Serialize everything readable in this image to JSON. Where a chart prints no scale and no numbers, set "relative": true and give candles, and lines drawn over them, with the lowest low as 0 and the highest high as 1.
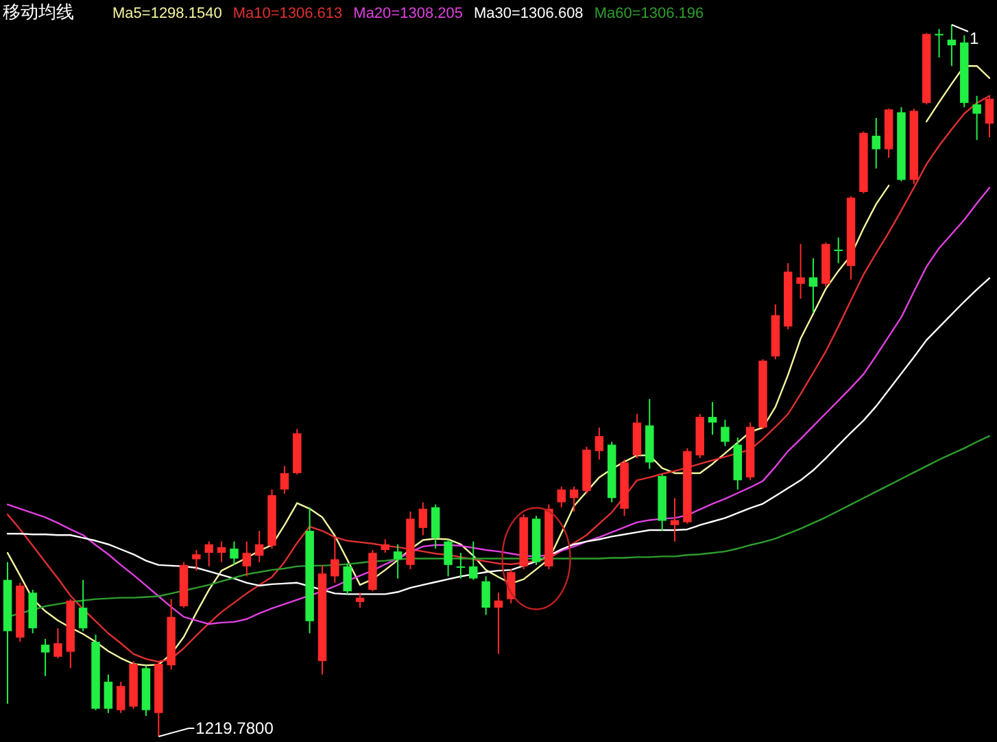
{
  "chart_data": {
    "type": "candlestick",
    "title": "移动均线",
    "relative": true,
    "legend": "top left",
    "categories": [
      null,
      null,
      null,
      null,
      null,
      null,
      null,
      null,
      null,
      null,
      null,
      null,
      null,
      null,
      null,
      null,
      null,
      null,
      null,
      null,
      null,
      null,
      null,
      null,
      null,
      null,
      null,
      null,
      null,
      null,
      null,
      null,
      null,
      null,
      null,
      null,
      null,
      null,
      null,
      null,
      null,
      null,
      null,
      null,
      null,
      null,
      null,
      null,
      null,
      null,
      null,
      null,
      null,
      null,
      null,
      null,
      null,
      null,
      null,
      null,
      null,
      null,
      null,
      null,
      null,
      null,
      null,
      null,
      null,
      null,
      null,
      null,
      null,
      null,
      null,
      null,
      null,
      null,
      null
    ],
    "ohlc": [
      [
        0.22,
        0.245,
        0.046,
        0.148
      ],
      [
        0.139,
        0.216,
        0.133,
        0.212
      ],
      [
        0.202,
        0.206,
        0.145,
        0.152
      ],
      [
        0.129,
        0.137,
        0.085,
        0.118
      ],
      [
        0.112,
        0.152,
        0.11,
        0.131
      ],
      [
        0.119,
        0.193,
        0.096,
        0.191
      ],
      [
        0.181,
        0.22,
        0.148,
        0.152
      ],
      [
        0.133,
        0.143,
        0.037,
        0.039
      ],
      [
        0.077,
        0.087,
        0.033,
        0.039
      ],
      [
        0.037,
        0.077,
        0.033,
        0.071
      ],
      [
        0.042,
        0.106,
        0.039,
        0.102
      ],
      [
        0.096,
        0.1,
        0.029,
        0.037
      ],
      [
        0.033,
        0.106,
        0.0,
        0.102
      ],
      [
        0.1,
        0.193,
        0.094,
        0.168
      ],
      [
        0.183,
        0.245,
        0.181,
        0.241
      ],
      [
        0.249,
        0.262,
        0.233,
        0.256
      ],
      [
        0.258,
        0.274,
        0.239,
        0.27
      ],
      [
        0.258,
        0.274,
        0.245,
        0.266
      ],
      [
        0.264,
        0.274,
        0.241,
        0.25
      ],
      [
        0.239,
        0.274,
        0.225,
        0.258
      ],
      [
        0.254,
        0.289,
        0.245,
        0.27
      ],
      [
        0.268,
        0.347,
        0.264,
        0.339
      ],
      [
        0.347,
        0.38,
        0.341,
        0.37
      ],
      [
        0.37,
        0.432,
        0.368,
        0.426
      ],
      [
        0.289,
        0.322,
        0.145,
        0.162
      ],
      [
        0.106,
        0.241,
        0.087,
        0.229
      ],
      [
        0.225,
        0.279,
        0.216,
        0.249
      ],
      [
        0.239,
        0.243,
        0.2,
        0.204
      ],
      [
        0.189,
        0.202,
        0.181,
        0.195
      ],
      [
        0.206,
        0.262,
        0.204,
        0.258
      ],
      [
        0.262,
        0.277,
        0.258,
        0.27
      ],
      [
        0.26,
        0.27,
        0.222,
        0.249
      ],
      [
        0.241,
        0.316,
        0.235,
        0.306
      ],
      [
        0.293,
        0.329,
        0.283,
        0.32
      ],
      [
        0.322,
        0.326,
        0.264,
        0.279
      ],
      [
        0.274,
        0.277,
        0.225,
        0.241
      ],
      [
        0.239,
        0.258,
        0.222,
        0.237
      ],
      [
        0.239,
        0.274,
        0.22,
        0.222
      ],
      [
        0.218,
        0.225,
        0.171,
        0.181
      ],
      [
        0.181,
        0.202,
        0.116,
        0.191
      ],
      [
        0.193,
        0.235,
        0.187,
        0.231
      ],
      [
        0.239,
        0.312,
        0.235,
        0.308
      ],
      [
        0.306,
        0.31,
        0.241,
        0.245
      ],
      [
        0.239,
        0.326,
        0.235,
        0.32
      ],
      [
        0.329,
        0.351,
        0.322,
        0.347
      ],
      [
        0.335,
        0.351,
        0.316,
        0.347
      ],
      [
        0.345,
        0.407,
        0.341,
        0.403
      ],
      [
        0.401,
        0.434,
        0.389,
        0.422
      ],
      [
        0.41,
        0.414,
        0.329,
        0.335
      ],
      [
        0.32,
        0.389,
        0.31,
        0.385
      ],
      [
        0.395,
        0.453,
        0.391,
        0.441
      ],
      [
        0.437,
        0.474,
        0.376,
        0.385
      ],
      [
        0.366,
        0.368,
        0.289,
        0.303
      ],
      [
        0.297,
        0.335,
        0.274,
        0.304
      ],
      [
        0.301,
        0.405,
        0.299,
        0.401
      ],
      [
        0.395,
        0.453,
        0.391,
        0.449
      ],
      [
        0.449,
        0.47,
        0.424,
        0.441
      ],
      [
        0.435,
        0.445,
        0.408,
        0.414
      ],
      [
        0.41,
        0.42,
        0.347,
        0.36
      ],
      [
        0.364,
        0.441,
        0.36,
        0.435
      ],
      [
        0.434,
        0.53,
        0.432,
        0.528
      ],
      [
        0.534,
        0.607,
        0.53,
        0.592
      ],
      [
        0.576,
        0.665,
        0.572,
        0.653
      ],
      [
        0.636,
        0.692,
        0.615,
        0.645
      ],
      [
        0.645,
        0.672,
        0.595,
        0.632
      ],
      [
        0.636,
        0.694,
        0.632,
        0.692
      ],
      [
        0.684,
        0.701,
        0.665,
        0.682
      ],
      [
        0.661,
        0.759,
        0.642,
        0.757
      ],
      [
        0.765,
        0.85,
        0.763,
        0.848
      ],
      [
        0.844,
        0.869,
        0.798,
        0.825
      ],
      [
        0.825,
        0.882,
        0.813,
        0.881
      ],
      [
        0.877,
        0.884,
        0.78,
        0.782
      ],
      [
        0.782,
        0.882,
        0.776,
        0.879
      ],
      [
        0.89,
        0.988,
        0.888,
        0.987
      ],
      [
        0.987,
        0.994,
        0.954,
        0.985
      ],
      [
        0.979,
        1.0,
        0.942,
        0.971
      ],
      [
        0.975,
        0.985,
        0.884,
        0.89
      ],
      [
        0.888,
        0.9,
        0.838,
        0.875
      ],
      [
        0.861,
        0.9,
        0.842,
        0.896
      ]
    ],
    "colors": [
      "#22ee44",
      "#ff2a2a",
      "#22ee44",
      "#22ee44",
      "#ff2a2a",
      "#ff2a2a",
      "#22ee44",
      "#22ee44",
      "#22ee44",
      "#ff2a2a",
      "#ff2a2a",
      "#22ee44",
      "#ff2a2a",
      "#ff2a2a",
      "#ff2a2a",
      "#ff2a2a",
      "#ff2a2a",
      "#ff2a2a",
      "#22ee44",
      "#ff2a2a",
      "#ff2a2a",
      "#ff2a2a",
      "#ff2a2a",
      "#ff2a2a",
      "#22ee44",
      "#ff2a2a",
      "#ff2a2a",
      "#22ee44",
      "#ff2a2a",
      "#ff2a2a",
      "#ff2a2a",
      "#22ee44",
      "#ff2a2a",
      "#ff2a2a",
      "#22ee44",
      "#22ee44",
      "#22ee44",
      "#22ee44",
      "#22ee44",
      "#ff2a2a",
      "#ff2a2a",
      "#ff2a2a",
      "#22ee44",
      "#ff2a2a",
      "#ff2a2a",
      "#ff2a2a",
      "#ff2a2a",
      "#ff2a2a",
      "#22ee44",
      "#ff2a2a",
      "#ff2a2a",
      "#22ee44",
      "#22ee44",
      "#ff2a2a",
      "#ff2a2a",
      "#ff2a2a",
      "#22ee44",
      "#22ee44",
      "#22ee44",
      "#ff2a2a",
      "#ff2a2a",
      "#ff2a2a",
      "#ff2a2a",
      "#ff2a2a",
      "#22ee44",
      "#ff2a2a",
      "#22ee44",
      "#ff2a2a",
      "#ff2a2a",
      "#22ee44",
      "#ff2a2a",
      "#22ee44",
      "#ff2a2a",
      "#ff2a2a",
      "#22ee44",
      "#22ee44",
      "#22ee44",
      "#22ee44",
      "#ff2a2a"
    ],
    "series": [
      {
        "name": "Ma5=1298.1540",
        "type": "line",
        "color": "#f5f5a0",
        "values": [
          0.258,
          0.226,
          0.193,
          0.176,
          0.163,
          0.153,
          0.144,
          0.133,
          0.12,
          0.11,
          0.102,
          0.1,
          0.101,
          0.116,
          0.14,
          0.174,
          0.206,
          0.233,
          0.242,
          0.251,
          0.261,
          0.269,
          0.297,
          0.328,
          0.32,
          0.308,
          0.282,
          0.248,
          0.213,
          0.221,
          0.234,
          0.248,
          0.263,
          0.276,
          0.278,
          0.277,
          0.27,
          0.254,
          0.234,
          0.224,
          0.215,
          0.221,
          0.235,
          0.249,
          0.286,
          0.324,
          0.344,
          0.364,
          0.376,
          0.386,
          0.395,
          0.395,
          0.377,
          0.37,
          0.37,
          0.37,
          0.383,
          0.398,
          0.413,
          0.428,
          0.434,
          0.463,
          0.508,
          0.559,
          0.594,
          0.629,
          0.654,
          0.676,
          0.714,
          0.748,
          0.774,
          null,
          null,
          0.864,
          0.891,
          0.917,
          0.942,
          0.942,
          0.925
        ]
      },
      {
        "name": "Ma10=1306.613",
        "type": "line",
        "color": "#e03030",
        "values": [
          0.312,
          0.291,
          0.268,
          0.245,
          0.222,
          0.198,
          0.179,
          0.162,
          0.145,
          0.131,
          0.116,
          0.109,
          0.105,
          0.109,
          0.124,
          0.142,
          0.159,
          0.175,
          0.188,
          0.201,
          0.213,
          0.224,
          0.245,
          0.272,
          0.295,
          0.289,
          0.28,
          0.275,
          0.273,
          0.271,
          0.268,
          0.266,
          0.263,
          0.26,
          0.257,
          0.255,
          0.252,
          0.249,
          0.246,
          0.243,
          0.242,
          0.244,
          0.247,
          0.25,
          0.261,
          0.272,
          0.283,
          0.299,
          0.315,
          0.337,
          0.36,
          0.364,
          0.369,
          0.373,
          0.378,
          0.383,
          0.388,
          0.393,
          0.398,
          0.403,
          0.418,
          0.435,
          0.453,
          0.481,
          0.511,
          0.541,
          0.576,
          0.613,
          0.649,
          0.679,
          0.708,
          0.739,
          0.771,
          0.804,
          0.83,
          0.853,
          0.875,
          0.89,
          0.9
        ]
      },
      {
        "name": "Ma20=1308.205",
        "type": "line",
        "color": "#e040e0",
        "values": [
          0.326,
          0.32,
          0.314,
          0.308,
          0.3,
          0.291,
          0.283,
          0.269,
          0.256,
          0.241,
          0.227,
          0.212,
          0.197,
          0.182,
          0.168,
          0.163,
          0.158,
          0.16,
          0.161,
          0.165,
          0.173,
          0.18,
          0.186,
          0.192,
          0.198,
          0.204,
          0.211,
          0.219,
          0.226,
          0.233,
          0.242,
          0.25,
          0.259,
          0.267,
          0.269,
          0.269,
          0.268,
          0.265,
          0.262,
          0.26,
          0.257,
          0.254,
          0.253,
          0.255,
          0.261,
          0.267,
          0.274,
          0.28,
          0.287,
          0.294,
          0.301,
          0.304,
          0.306,
          0.307,
          0.311,
          0.319,
          0.327,
          0.334,
          0.342,
          0.35,
          0.359,
          0.379,
          0.401,
          0.418,
          0.436,
          0.454,
          0.472,
          0.49,
          0.509,
          0.535,
          0.562,
          0.589,
          0.625,
          0.66,
          0.686,
          0.706,
          0.726,
          0.749,
          0.771
        ]
      },
      {
        "name": "Ma30=1306.608",
        "type": "line",
        "color": "#ffffff",
        "values": [
          0.285,
          0.285,
          0.284,
          0.284,
          0.283,
          0.283,
          0.279,
          0.275,
          0.27,
          0.263,
          0.256,
          0.247,
          0.241,
          0.24,
          0.239,
          0.237,
          0.232,
          0.227,
          0.222,
          0.216,
          0.212,
          0.214,
          0.215,
          0.216,
          0.211,
          0.206,
          0.201,
          0.2,
          0.2,
          0.2,
          0.2,
          0.203,
          0.209,
          0.213,
          0.217,
          0.221,
          0.225,
          0.228,
          0.231,
          0.233,
          0.234,
          0.24,
          0.246,
          0.254,
          0.263,
          0.27,
          0.274,
          0.277,
          0.281,
          0.284,
          0.287,
          0.29,
          0.29,
          0.29,
          0.291,
          0.297,
          0.302,
          0.307,
          0.314,
          0.321,
          0.327,
          0.338,
          0.349,
          0.36,
          0.374,
          0.391,
          0.409,
          0.427,
          0.444,
          0.464,
          0.487,
          0.51,
          0.533,
          0.557,
          0.575,
          0.593,
          0.611,
          0.628,
          0.644
        ]
      },
      {
        "name": "Ma60=1306.196",
        "type": "line",
        "color": "#2e9e2e",
        "values": [
          0.168,
          0.173,
          0.178,
          0.183,
          0.186,
          0.189,
          0.191,
          0.193,
          0.194,
          0.195,
          0.195,
          0.196,
          0.197,
          0.201,
          0.205,
          0.209,
          0.213,
          0.218,
          0.223,
          0.228,
          0.231,
          0.234,
          0.236,
          0.239,
          0.24,
          0.24,
          0.241,
          0.242,
          0.244,
          0.246,
          0.247,
          0.249,
          0.25,
          0.25,
          0.25,
          0.25,
          0.25,
          0.25,
          0.25,
          0.25,
          0.25,
          0.25,
          0.25,
          0.25,
          0.25,
          0.25,
          0.25,
          0.25,
          0.251,
          0.251,
          0.252,
          0.252,
          0.253,
          0.253,
          0.255,
          0.256,
          0.258,
          0.26,
          0.264,
          0.269,
          0.273,
          0.278,
          0.285,
          0.292,
          0.3,
          0.308,
          0.317,
          0.326,
          0.335,
          0.344,
          0.353,
          0.362,
          0.371,
          0.38,
          0.389,
          0.397,
          0.405,
          0.414,
          0.422
        ]
      }
    ],
    "annotations": [
      "1219.7800",
      "1"
    ]
  }
}
